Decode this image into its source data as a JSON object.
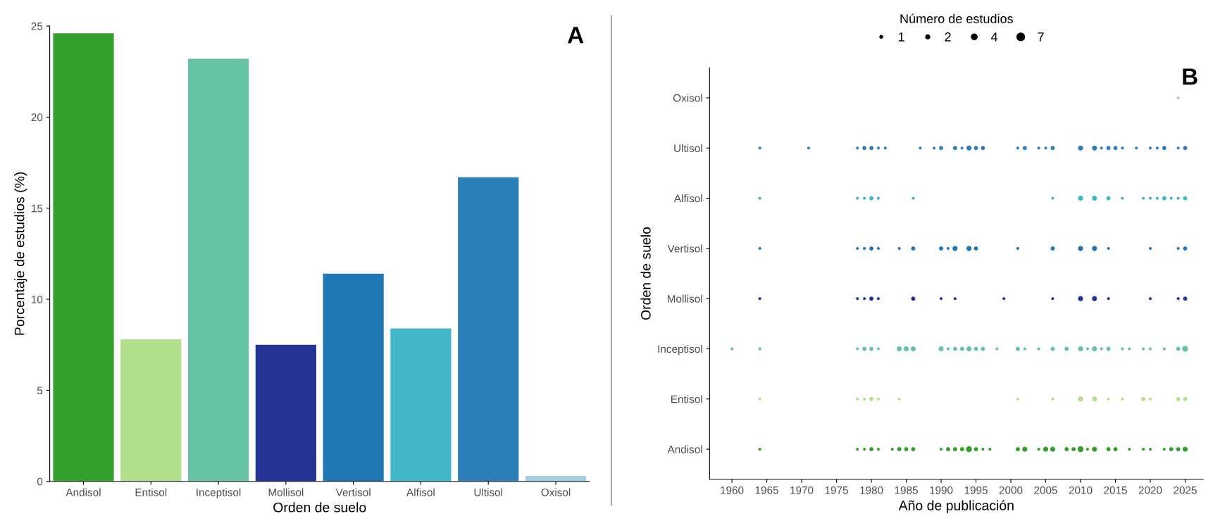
{
  "chart_data": [
    {
      "type": "bar",
      "categories": [
        "Andisol",
        "Entisol",
        "Inceptisol",
        "Mollisol",
        "Vertisol",
        "Alfisol",
        "Ultisol",
        "Oxisol"
      ],
      "values": [
        24.6,
        7.8,
        23.2,
        7.5,
        11.4,
        8.4,
        16.7,
        0.3
      ],
      "colors": [
        "#33a02c",
        "#b2df8a",
        "#66c2a5",
        "#253494",
        "#1f78b4",
        "#41b6c4",
        "#2c7fb8",
        "#a6cee3"
      ],
      "ylim": [
        0,
        25
      ],
      "yticks": [
        0,
        5,
        10,
        15,
        20,
        25
      ],
      "xlabel": "Orden de suelo",
      "ylabel": "Porcentaje de estudios (%)",
      "grid": false,
      "annotations": [
        "A"
      ]
    },
    {
      "type": "bubble",
      "orientation": "horizontal",
      "categories": [
        "Oxisol",
        "Ultisol",
        "Alfisol",
        "Vertisol",
        "Mollisol",
        "Inceptisol",
        "Entisol",
        "Andisol"
      ],
      "xlim": [
        1956.8,
        2027.6
      ],
      "xticks": [
        1960,
        1965,
        1970,
        1975,
        1980,
        1985,
        1990,
        1995,
        2000,
        2005,
        2010,
        2015,
        2020,
        2025
      ],
      "xlabel": "Año de publicación",
      "ylabel": "Orden de suelo",
      "legend_title": "Número de estudios",
      "size_legend": [
        1,
        2,
        4,
        7
      ],
      "grid": false,
      "annotations": [
        "B"
      ],
      "series": [
        {
          "values": [
            null,
            null,
            null,
            null,
            null,
            1960,
            null,
            null
          ],
          "sizes": [
            null,
            null,
            null,
            null,
            null,
            1,
            null,
            null
          ],
          "colors": [
            "#a6cee3",
            "#2c7fb8",
            "#41b6c4",
            "#1f78b4",
            "#253494",
            "#66c2a5",
            "#b2df8a",
            "#33a02c"
          ]
        },
        {
          "values": [
            null,
            1964,
            1964,
            1964,
            1964,
            1964,
            1964,
            1964
          ],
          "sizes": [
            null,
            1,
            1,
            1,
            1,
            1,
            1,
            1
          ],
          "colors": [
            "#a6cee3",
            "#2c7fb8",
            "#41b6c4",
            "#1f78b4",
            "#253494",
            "#66c2a5",
            "#b2df8a",
            "#33a02c"
          ]
        },
        {
          "values": [
            null,
            1971,
            null,
            null,
            null,
            null,
            null,
            null
          ],
          "sizes": [
            null,
            1,
            null,
            null,
            null,
            null,
            null,
            null
          ],
          "colors": [
            "#a6cee3",
            "#2c7fb8",
            "#41b6c4",
            "#1f78b4",
            "#253494",
            "#66c2a5",
            "#b2df8a",
            "#33a02c"
          ]
        },
        {
          "values": [
            null,
            1978,
            1978,
            1978,
            1978,
            1978,
            1978,
            1978
          ],
          "sizes": [
            null,
            1,
            1,
            1,
            1,
            1,
            1,
            1
          ],
          "colors": [
            "#a6cee3",
            "#2c7fb8",
            "#41b6c4",
            "#1f78b4",
            "#253494",
            "#66c2a5",
            "#b2df8a",
            "#33a02c"
          ]
        },
        {
          "values": [
            null,
            1979,
            1979,
            1979,
            1979,
            1979,
            1979,
            1979
          ],
          "sizes": [
            null,
            2,
            1,
            1,
            1,
            2,
            1,
            1
          ],
          "colors": [
            "#a6cee3",
            "#2c7fb8",
            "#41b6c4",
            "#1f78b4",
            "#253494",
            "#66c2a5",
            "#b2df8a",
            "#33a02c"
          ]
        },
        {
          "values": [
            null,
            1980,
            1980,
            1980,
            1980,
            1980,
            1980,
            1980
          ],
          "sizes": [
            null,
            2,
            2,
            2,
            2,
            2,
            2,
            2
          ],
          "colors": [
            "#a6cee3",
            "#2c7fb8",
            "#41b6c4",
            "#1f78b4",
            "#253494",
            "#66c2a5",
            "#b2df8a",
            "#33a02c"
          ]
        },
        {
          "values": [
            null,
            1981,
            1981,
            1981,
            1981,
            1981,
            1981,
            1981
          ],
          "sizes": [
            null,
            1,
            1,
            1,
            1,
            1,
            1,
            1
          ],
          "colors": [
            "#a6cee3",
            "#2c7fb8",
            "#41b6c4",
            "#1f78b4",
            "#253494",
            "#66c2a5",
            "#b2df8a",
            "#33a02c"
          ]
        },
        {
          "values": [
            null,
            1982,
            null,
            null,
            null,
            null,
            null,
            null
          ],
          "sizes": [
            null,
            1,
            null,
            null,
            null,
            null,
            null,
            null
          ],
          "colors": [
            "#a6cee3",
            "#2c7fb8",
            "#41b6c4",
            "#1f78b4",
            "#253494",
            "#66c2a5",
            "#b2df8a",
            "#33a02c"
          ]
        },
        {
          "values": [
            null,
            null,
            null,
            null,
            null,
            null,
            null,
            1983
          ],
          "sizes": [
            null,
            null,
            null,
            null,
            null,
            null,
            null,
            1
          ],
          "colors": [
            "#a6cee3",
            "#2c7fb8",
            "#41b6c4",
            "#1f78b4",
            "#253494",
            "#66c2a5",
            "#b2df8a",
            "#33a02c"
          ]
        },
        {
          "values": [
            null,
            null,
            null,
            1984,
            null,
            1984,
            1984,
            1984
          ],
          "sizes": [
            null,
            null,
            null,
            1,
            null,
            3,
            1,
            2
          ],
          "colors": [
            "#a6cee3",
            "#2c7fb8",
            "#41b6c4",
            "#1f78b4",
            "#253494",
            "#66c2a5",
            "#b2df8a",
            "#33a02c"
          ]
        },
        {
          "values": [
            null,
            null,
            null,
            null,
            null,
            1985,
            null,
            1985
          ],
          "sizes": [
            null,
            null,
            null,
            null,
            null,
            3,
            null,
            2
          ],
          "colors": [
            "#a6cee3",
            "#2c7fb8",
            "#41b6c4",
            "#1f78b4",
            "#253494",
            "#66c2a5",
            "#b2df8a",
            "#33a02c"
          ]
        },
        {
          "values": [
            null,
            null,
            1986,
            1986,
            1986,
            1986,
            null,
            1986
          ],
          "sizes": [
            null,
            null,
            1,
            2,
            2,
            3,
            null,
            2
          ],
          "colors": [
            "#a6cee3",
            "#2c7fb8",
            "#41b6c4",
            "#1f78b4",
            "#253494",
            "#66c2a5",
            "#b2df8a",
            "#33a02c"
          ]
        },
        {
          "values": [
            null,
            1987,
            null,
            null,
            null,
            null,
            null,
            null
          ],
          "sizes": [
            null,
            1,
            null,
            null,
            null,
            null,
            null,
            null
          ],
          "colors": [
            "#a6cee3",
            "#2c7fb8",
            "#41b6c4",
            "#1f78b4",
            "#253494",
            "#66c2a5",
            "#b2df8a",
            "#33a02c"
          ]
        },
        {
          "values": [
            null,
            1989,
            null,
            null,
            null,
            null,
            null,
            null
          ],
          "sizes": [
            null,
            1,
            null,
            null,
            null,
            null,
            null,
            null
          ],
          "colors": [
            "#a6cee3",
            "#2c7fb8",
            "#41b6c4",
            "#1f78b4",
            "#253494",
            "#66c2a5",
            "#b2df8a",
            "#33a02c"
          ]
        },
        {
          "values": [
            null,
            1990,
            null,
            1990,
            1990,
            1990,
            null,
            1990
          ],
          "sizes": [
            null,
            2,
            null,
            2,
            1,
            3,
            null,
            1
          ],
          "colors": [
            "#a6cee3",
            "#2c7fb8",
            "#41b6c4",
            "#1f78b4",
            "#253494",
            "#66c2a5",
            "#b2df8a",
            "#33a02c"
          ]
        },
        {
          "values": [
            null,
            null,
            null,
            1991,
            null,
            1991,
            null,
            1991
          ],
          "sizes": [
            null,
            null,
            null,
            1,
            null,
            1,
            null,
            2
          ],
          "colors": [
            "#a6cee3",
            "#2c7fb8",
            "#41b6c4",
            "#1f78b4",
            "#253494",
            "#66c2a5",
            "#b2df8a",
            "#33a02c"
          ]
        },
        {
          "values": [
            null,
            1992,
            null,
            1992,
            1992,
            1992,
            null,
            1992
          ],
          "sizes": [
            null,
            2,
            null,
            3,
            1,
            2,
            null,
            2
          ],
          "colors": [
            "#a6cee3",
            "#2c7fb8",
            "#41b6c4",
            "#1f78b4",
            "#253494",
            "#66c2a5",
            "#b2df8a",
            "#33a02c"
          ]
        },
        {
          "values": [
            null,
            1993,
            null,
            null,
            null,
            1993,
            null,
            1993
          ],
          "sizes": [
            null,
            1,
            null,
            null,
            null,
            2,
            null,
            2
          ],
          "colors": [
            "#a6cee3",
            "#2c7fb8",
            "#41b6c4",
            "#1f78b4",
            "#253494",
            "#66c2a5",
            "#b2df8a",
            "#33a02c"
          ]
        },
        {
          "values": [
            null,
            1994,
            null,
            1994,
            null,
            1994,
            null,
            1994
          ],
          "sizes": [
            null,
            3,
            null,
            3,
            null,
            3,
            null,
            4
          ],
          "colors": [
            "#a6cee3",
            "#2c7fb8",
            "#41b6c4",
            "#1f78b4",
            "#253494",
            "#66c2a5",
            "#b2df8a",
            "#33a02c"
          ]
        },
        {
          "values": [
            null,
            1995,
            null,
            1995,
            null,
            1995,
            null,
            1995
          ],
          "sizes": [
            null,
            2,
            null,
            2,
            null,
            2,
            null,
            2
          ],
          "colors": [
            "#a6cee3",
            "#2c7fb8",
            "#41b6c4",
            "#1f78b4",
            "#253494",
            "#66c2a5",
            "#b2df8a",
            "#33a02c"
          ]
        },
        {
          "values": [
            null,
            1996,
            null,
            null,
            null,
            1996,
            null,
            1996
          ],
          "sizes": [
            null,
            2,
            null,
            null,
            null,
            2,
            null,
            1
          ],
          "colors": [
            "#a6cee3",
            "#2c7fb8",
            "#41b6c4",
            "#1f78b4",
            "#253494",
            "#66c2a5",
            "#b2df8a",
            "#33a02c"
          ]
        },
        {
          "values": [
            null,
            null,
            null,
            null,
            null,
            null,
            null,
            1997
          ],
          "sizes": [
            null,
            null,
            null,
            null,
            null,
            null,
            null,
            1
          ],
          "colors": [
            "#a6cee3",
            "#2c7fb8",
            "#41b6c4",
            "#1f78b4",
            "#253494",
            "#66c2a5",
            "#b2df8a",
            "#33a02c"
          ]
        },
        {
          "values": [
            null,
            null,
            null,
            null,
            null,
            1998,
            null,
            null
          ],
          "sizes": [
            null,
            null,
            null,
            null,
            null,
            1,
            null,
            null
          ],
          "colors": [
            "#a6cee3",
            "#2c7fb8",
            "#41b6c4",
            "#1f78b4",
            "#253494",
            "#66c2a5",
            "#b2df8a",
            "#33a02c"
          ]
        },
        {
          "values": [
            null,
            null,
            null,
            null,
            1999,
            null,
            null,
            null
          ],
          "sizes": [
            null,
            null,
            null,
            null,
            1,
            null,
            null,
            null
          ],
          "colors": [
            "#a6cee3",
            "#2c7fb8",
            "#41b6c4",
            "#1f78b4",
            "#253494",
            "#66c2a5",
            "#b2df8a",
            "#33a02c"
          ]
        },
        {
          "values": [
            null,
            2001,
            null,
            2001,
            null,
            2001,
            2001,
            2001
          ],
          "sizes": [
            null,
            1,
            null,
            1,
            null,
            2,
            1,
            2
          ],
          "colors": [
            "#a6cee3",
            "#2c7fb8",
            "#41b6c4",
            "#1f78b4",
            "#253494",
            "#66c2a5",
            "#b2df8a",
            "#33a02c"
          ]
        },
        {
          "values": [
            null,
            2002,
            null,
            null,
            null,
            2002,
            null,
            2002
          ],
          "sizes": [
            null,
            2,
            null,
            null,
            null,
            1,
            null,
            3
          ],
          "colors": [
            "#a6cee3",
            "#2c7fb8",
            "#41b6c4",
            "#1f78b4",
            "#253494",
            "#66c2a5",
            "#b2df8a",
            "#33a02c"
          ]
        },
        {
          "values": [
            null,
            2004,
            null,
            null,
            null,
            2004,
            null,
            2004
          ],
          "sizes": [
            null,
            1,
            null,
            null,
            null,
            1,
            null,
            1
          ],
          "colors": [
            "#a6cee3",
            "#2c7fb8",
            "#41b6c4",
            "#1f78b4",
            "#253494",
            "#66c2a5",
            "#b2df8a",
            "#33a02c"
          ]
        },
        {
          "values": [
            null,
            2005,
            null,
            null,
            null,
            null,
            null,
            2005
          ],
          "sizes": [
            null,
            1,
            null,
            null,
            null,
            null,
            null,
            3
          ],
          "colors": [
            "#a6cee3",
            "#2c7fb8",
            "#41b6c4",
            "#1f78b4",
            "#253494",
            "#66c2a5",
            "#b2df8a",
            "#33a02c"
          ]
        },
        {
          "values": [
            null,
            2006,
            2006,
            2006,
            2006,
            2006,
            2006,
            2006
          ],
          "sizes": [
            null,
            2,
            1,
            2,
            1,
            2,
            1,
            3
          ],
          "colors": [
            "#a6cee3",
            "#2c7fb8",
            "#41b6c4",
            "#1f78b4",
            "#253494",
            "#66c2a5",
            "#b2df8a",
            "#33a02c"
          ]
        },
        {
          "values": [
            null,
            null,
            null,
            null,
            null,
            2008,
            null,
            2008
          ],
          "sizes": [
            null,
            null,
            null,
            null,
            null,
            2,
            null,
            2
          ],
          "colors": [
            "#a6cee3",
            "#2c7fb8",
            "#41b6c4",
            "#1f78b4",
            "#253494",
            "#66c2a5",
            "#b2df8a",
            "#33a02c"
          ]
        },
        {
          "values": [
            null,
            null,
            null,
            null,
            null,
            null,
            null,
            2009
          ],
          "sizes": [
            null,
            null,
            null,
            null,
            null,
            null,
            null,
            2
          ],
          "colors": [
            "#a6cee3",
            "#2c7fb8",
            "#41b6c4",
            "#1f78b4",
            "#253494",
            "#66c2a5",
            "#b2df8a",
            "#33a02c"
          ]
        },
        {
          "values": [
            null,
            2010,
            2010,
            2010,
            2010,
            2010,
            2010,
            2010
          ],
          "sizes": [
            null,
            3,
            3,
            3,
            3,
            3,
            3,
            4
          ],
          "colors": [
            "#a6cee3",
            "#2c7fb8",
            "#41b6c4",
            "#1f78b4",
            "#253494",
            "#66c2a5",
            "#b2df8a",
            "#33a02c"
          ]
        },
        {
          "values": [
            null,
            null,
            null,
            null,
            null,
            2011,
            null,
            2011
          ],
          "sizes": [
            null,
            null,
            null,
            null,
            null,
            1,
            null,
            1
          ],
          "colors": [
            "#a6cee3",
            "#2c7fb8",
            "#41b6c4",
            "#1f78b4",
            "#253494",
            "#66c2a5",
            "#b2df8a",
            "#33a02c"
          ]
        },
        {
          "values": [
            null,
            2012,
            2012,
            2012,
            2012,
            2012,
            2012,
            2012
          ],
          "sizes": [
            null,
            3,
            3,
            3,
            3,
            3,
            3,
            3
          ],
          "colors": [
            "#a6cee3",
            "#2c7fb8",
            "#41b6c4",
            "#1f78b4",
            "#253494",
            "#66c2a5",
            "#b2df8a",
            "#33a02c"
          ]
        },
        {
          "values": [
            null,
            2013,
            null,
            null,
            null,
            2013,
            null,
            null
          ],
          "sizes": [
            null,
            1,
            null,
            null,
            null,
            1,
            null,
            null
          ],
          "colors": [
            "#a6cee3",
            "#2c7fb8",
            "#41b6c4",
            "#1f78b4",
            "#253494",
            "#66c2a5",
            "#b2df8a",
            "#33a02c"
          ]
        },
        {
          "values": [
            null,
            2014,
            2014,
            2014,
            2014,
            2014,
            2014,
            2014
          ],
          "sizes": [
            null,
            2,
            2,
            1,
            1,
            2,
            1,
            2
          ],
          "colors": [
            "#a6cee3",
            "#2c7fb8",
            "#41b6c4",
            "#1f78b4",
            "#253494",
            "#66c2a5",
            "#b2df8a",
            "#33a02c"
          ]
        },
        {
          "values": [
            null,
            2015,
            null,
            null,
            null,
            null,
            null,
            2015
          ],
          "sizes": [
            null,
            2,
            null,
            null,
            null,
            null,
            null,
            2
          ],
          "colors": [
            "#a6cee3",
            "#2c7fb8",
            "#41b6c4",
            "#1f78b4",
            "#253494",
            "#66c2a5",
            "#b2df8a",
            "#33a02c"
          ]
        },
        {
          "values": [
            null,
            2016,
            2016,
            null,
            null,
            2016,
            2016,
            null
          ],
          "sizes": [
            null,
            1,
            1,
            null,
            null,
            1,
            1,
            null
          ],
          "colors": [
            "#a6cee3",
            "#2c7fb8",
            "#41b6c4",
            "#1f78b4",
            "#253494",
            "#66c2a5",
            "#b2df8a",
            "#33a02c"
          ]
        },
        {
          "values": [
            null,
            null,
            null,
            null,
            null,
            2017,
            null,
            2017
          ],
          "sizes": [
            null,
            null,
            null,
            null,
            null,
            1,
            null,
            1
          ],
          "colors": [
            "#a6cee3",
            "#2c7fb8",
            "#41b6c4",
            "#1f78b4",
            "#253494",
            "#66c2a5",
            "#b2df8a",
            "#33a02c"
          ]
        },
        {
          "values": [
            null,
            2018,
            null,
            null,
            null,
            null,
            null,
            null
          ],
          "sizes": [
            null,
            1,
            null,
            null,
            null,
            null,
            null,
            null
          ],
          "colors": [
            "#a6cee3",
            "#2c7fb8",
            "#41b6c4",
            "#1f78b4",
            "#253494",
            "#66c2a5",
            "#b2df8a",
            "#33a02c"
          ]
        },
        {
          "values": [
            null,
            null,
            2019,
            null,
            null,
            2019,
            2019,
            2019
          ],
          "sizes": [
            null,
            null,
            1,
            null,
            null,
            1,
            2,
            1
          ],
          "colors": [
            "#a6cee3",
            "#2c7fb8",
            "#41b6c4",
            "#1f78b4",
            "#253494",
            "#66c2a5",
            "#b2df8a",
            "#33a02c"
          ]
        },
        {
          "values": [
            null,
            2020,
            2020,
            2020,
            2020,
            2020,
            2020,
            2020
          ],
          "sizes": [
            null,
            1,
            1,
            1,
            1,
            1,
            1,
            1
          ],
          "colors": [
            "#a6cee3",
            "#2c7fb8",
            "#41b6c4",
            "#1f78b4",
            "#253494",
            "#66c2a5",
            "#b2df8a",
            "#33a02c"
          ]
        },
        {
          "values": [
            null,
            2021,
            2021,
            null,
            null,
            null,
            null,
            null
          ],
          "sizes": [
            null,
            1,
            1,
            null,
            null,
            null,
            null,
            null
          ],
          "colors": [
            "#a6cee3",
            "#2c7fb8",
            "#41b6c4",
            "#1f78b4",
            "#253494",
            "#66c2a5",
            "#b2df8a",
            "#33a02c"
          ]
        },
        {
          "values": [
            null,
            2022,
            2022,
            null,
            null,
            2022,
            null,
            2022
          ],
          "sizes": [
            null,
            2,
            2,
            null,
            null,
            1,
            null,
            1
          ],
          "colors": [
            "#a6cee3",
            "#2c7fb8",
            "#41b6c4",
            "#1f78b4",
            "#253494",
            "#66c2a5",
            "#b2df8a",
            "#33a02c"
          ]
        },
        {
          "values": [
            null,
            null,
            2023,
            null,
            null,
            null,
            null,
            2023
          ],
          "sizes": [
            null,
            null,
            1,
            null,
            null,
            null,
            null,
            2
          ],
          "colors": [
            "#a6cee3",
            "#2c7fb8",
            "#41b6c4",
            "#1f78b4",
            "#253494",
            "#66c2a5",
            "#b2df8a",
            "#33a02c"
          ]
        },
        {
          "values": [
            2024,
            2024,
            2024,
            2024,
            2024,
            2024,
            2024,
            2024
          ],
          "sizes": [
            1,
            1,
            1,
            1,
            1,
            2,
            2,
            2
          ],
          "colors": [
            "#a6cee3",
            "#2c7fb8",
            "#41b6c4",
            "#1f78b4",
            "#253494",
            "#66c2a5",
            "#b2df8a",
            "#33a02c"
          ]
        },
        {
          "values": [
            null,
            2025,
            2025,
            2025,
            2025,
            2025,
            2025,
            2025
          ],
          "sizes": [
            null,
            2,
            2,
            2,
            2,
            4,
            2,
            3
          ],
          "colors": [
            "#a6cee3",
            "#2c7fb8",
            "#41b6c4",
            "#1f78b4",
            "#253494",
            "#66c2a5",
            "#b2df8a",
            "#33a02c"
          ]
        }
      ]
    }
  ]
}
